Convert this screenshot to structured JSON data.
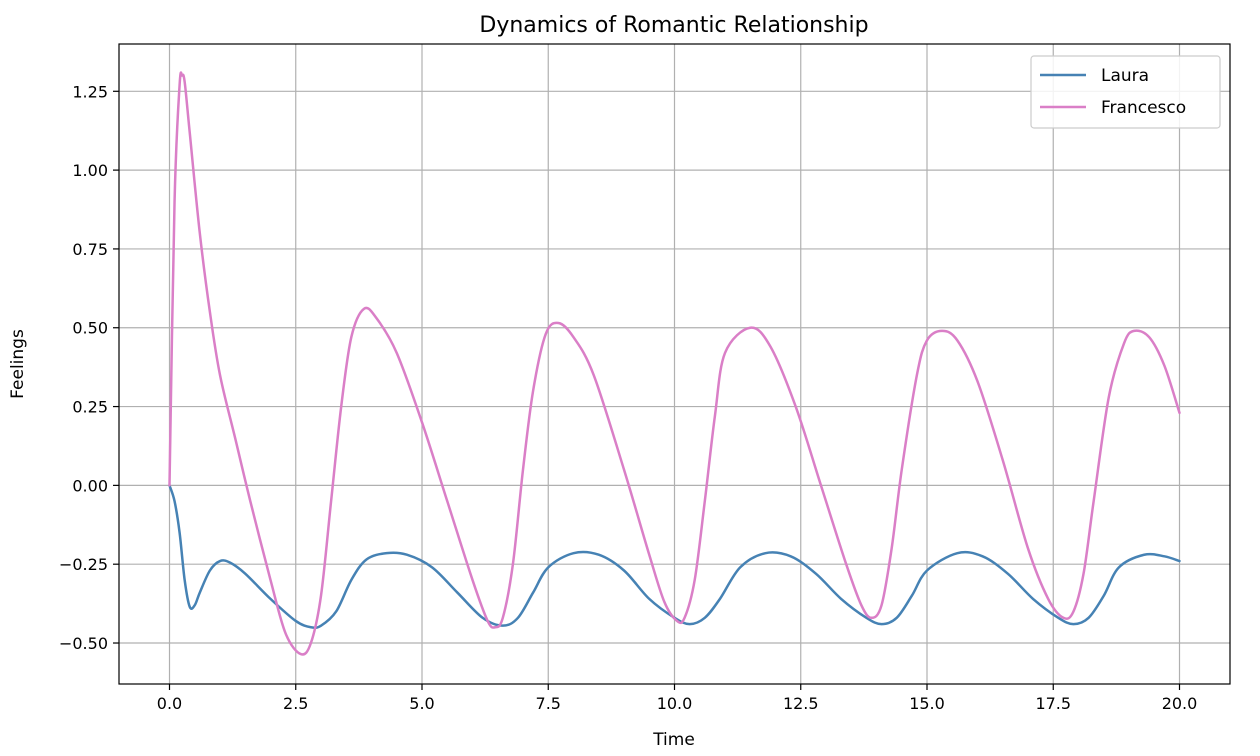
{
  "chart_data": {
    "type": "line",
    "title": "Dynamics of Romantic Relationship",
    "xlabel": "Time",
    "ylabel": "Feelings",
    "xlim": [
      -1.0,
      21.0
    ],
    "ylim": [
      -0.63,
      1.4
    ],
    "grid": true,
    "legend_position": "top-right",
    "x_ticks": [
      0.0,
      2.5,
      5.0,
      7.5,
      10.0,
      12.5,
      15.0,
      17.5,
      20.0
    ],
    "x_tick_labels": [
      "0.0",
      "2.5",
      "5.0",
      "7.5",
      "10.0",
      "12.5",
      "15.0",
      "17.5",
      "20.0"
    ],
    "y_ticks": [
      -0.5,
      -0.25,
      0.0,
      0.25,
      0.5,
      0.75,
      1.0,
      1.25
    ],
    "y_tick_labels": [
      "−0.50",
      "−0.25",
      "0.00",
      "0.25",
      "0.50",
      "0.75",
      "1.00",
      "1.25"
    ],
    "series": [
      {
        "name": "Laura",
        "color": "#4682b4",
        "points": [
          [
            0.0,
            0.0
          ],
          [
            0.1,
            -0.05
          ],
          [
            0.2,
            -0.15
          ],
          [
            0.3,
            -0.3
          ],
          [
            0.4,
            -0.385
          ],
          [
            0.5,
            -0.38
          ],
          [
            0.6,
            -0.34
          ],
          [
            0.8,
            -0.27
          ],
          [
            1.0,
            -0.24
          ],
          [
            1.2,
            -0.245
          ],
          [
            1.5,
            -0.28
          ],
          [
            2.0,
            -0.36
          ],
          [
            2.5,
            -0.43
          ],
          [
            2.8,
            -0.45
          ],
          [
            3.0,
            -0.445
          ],
          [
            3.3,
            -0.4
          ],
          [
            3.6,
            -0.3
          ],
          [
            3.9,
            -0.235
          ],
          [
            4.3,
            -0.215
          ],
          [
            4.7,
            -0.22
          ],
          [
            5.2,
            -0.26
          ],
          [
            5.7,
            -0.34
          ],
          [
            6.2,
            -0.42
          ],
          [
            6.6,
            -0.445
          ],
          [
            6.9,
            -0.42
          ],
          [
            7.2,
            -0.34
          ],
          [
            7.5,
            -0.26
          ],
          [
            8.0,
            -0.215
          ],
          [
            8.5,
            -0.22
          ],
          [
            9.0,
            -0.27
          ],
          [
            9.5,
            -0.36
          ],
          [
            10.0,
            -0.42
          ],
          [
            10.3,
            -0.44
          ],
          [
            10.6,
            -0.42
          ],
          [
            10.9,
            -0.36
          ],
          [
            11.3,
            -0.26
          ],
          [
            11.8,
            -0.215
          ],
          [
            12.3,
            -0.225
          ],
          [
            12.8,
            -0.28
          ],
          [
            13.3,
            -0.36
          ],
          [
            13.8,
            -0.42
          ],
          [
            14.1,
            -0.44
          ],
          [
            14.4,
            -0.42
          ],
          [
            14.7,
            -0.35
          ],
          [
            15.0,
            -0.27
          ],
          [
            15.6,
            -0.215
          ],
          [
            16.1,
            -0.225
          ],
          [
            16.6,
            -0.28
          ],
          [
            17.1,
            -0.36
          ],
          [
            17.6,
            -0.42
          ],
          [
            17.9,
            -0.44
          ],
          [
            18.2,
            -0.42
          ],
          [
            18.5,
            -0.35
          ],
          [
            18.8,
            -0.26
          ],
          [
            19.3,
            -0.22
          ],
          [
            19.7,
            -0.225
          ],
          [
            20.0,
            -0.24
          ]
        ]
      },
      {
        "name": "Francesco",
        "color": "#da7fc7",
        "points": [
          [
            0.0,
            0.0
          ],
          [
            0.1,
            0.9
          ],
          [
            0.2,
            1.27
          ],
          [
            0.25,
            1.3
          ],
          [
            0.3,
            1.28
          ],
          [
            0.4,
            1.12
          ],
          [
            0.6,
            0.8
          ],
          [
            0.8,
            0.55
          ],
          [
            1.0,
            0.35
          ],
          [
            1.3,
            0.15
          ],
          [
            1.6,
            -0.05
          ],
          [
            2.0,
            -0.3
          ],
          [
            2.3,
            -0.47
          ],
          [
            2.6,
            -0.535
          ],
          [
            2.8,
            -0.5
          ],
          [
            3.0,
            -0.35
          ],
          [
            3.2,
            -0.05
          ],
          [
            3.4,
            0.25
          ],
          [
            3.6,
            0.47
          ],
          [
            3.85,
            0.56
          ],
          [
            4.1,
            0.53
          ],
          [
            4.5,
            0.42
          ],
          [
            5.0,
            0.2
          ],
          [
            5.5,
            -0.05
          ],
          [
            6.0,
            -0.3
          ],
          [
            6.3,
            -0.43
          ],
          [
            6.45,
            -0.45
          ],
          [
            6.6,
            -0.42
          ],
          [
            6.8,
            -0.25
          ],
          [
            7.0,
            0.05
          ],
          [
            7.2,
            0.3
          ],
          [
            7.45,
            0.48
          ],
          [
            7.7,
            0.515
          ],
          [
            8.0,
            0.47
          ],
          [
            8.4,
            0.35
          ],
          [
            9.0,
            0.05
          ],
          [
            9.5,
            -0.22
          ],
          [
            9.8,
            -0.37
          ],
          [
            10.05,
            -0.43
          ],
          [
            10.2,
            -0.42
          ],
          [
            10.4,
            -0.3
          ],
          [
            10.6,
            -0.05
          ],
          [
            10.8,
            0.22
          ],
          [
            11.0,
            0.42
          ],
          [
            11.5,
            0.5
          ],
          [
            11.9,
            0.44
          ],
          [
            12.4,
            0.25
          ],
          [
            12.9,
            0.0
          ],
          [
            13.4,
            -0.25
          ],
          [
            13.7,
            -0.38
          ],
          [
            13.9,
            -0.42
          ],
          [
            14.1,
            -0.38
          ],
          [
            14.3,
            -0.2
          ],
          [
            14.5,
            0.05
          ],
          [
            14.8,
            0.35
          ],
          [
            15.0,
            0.46
          ],
          [
            15.3,
            0.49
          ],
          [
            15.6,
            0.46
          ],
          [
            16.0,
            0.33
          ],
          [
            16.5,
            0.08
          ],
          [
            17.0,
            -0.2
          ],
          [
            17.4,
            -0.36
          ],
          [
            17.7,
            -0.42
          ],
          [
            17.9,
            -0.4
          ],
          [
            18.1,
            -0.28
          ],
          [
            18.3,
            -0.05
          ],
          [
            18.6,
            0.28
          ],
          [
            18.9,
            0.45
          ],
          [
            19.1,
            0.49
          ],
          [
            19.4,
            0.47
          ],
          [
            19.7,
            0.38
          ],
          [
            20.0,
            0.23
          ]
        ]
      }
    ]
  }
}
